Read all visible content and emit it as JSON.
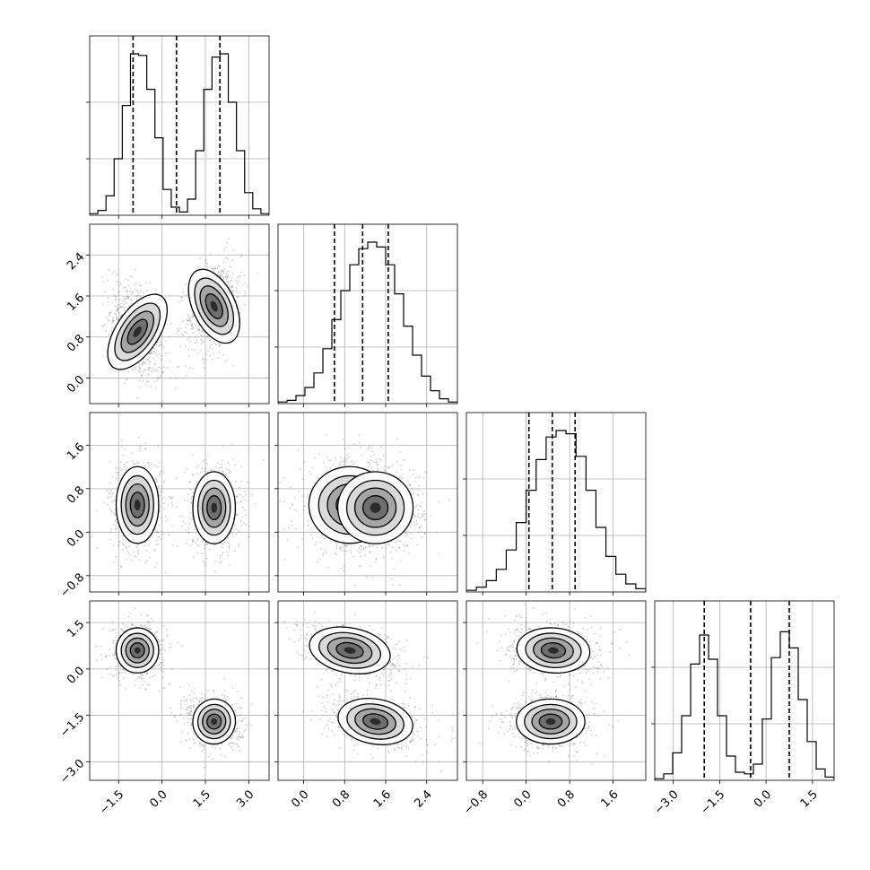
{
  "chart_data": {
    "type": "corner",
    "grid": true,
    "xticks": [
      [
        "-1.5",
        "0.0",
        "1.5",
        "3.0"
      ],
      [
        "0.0",
        "0.8",
        "1.6",
        "2.4"
      ],
      [
        "-0.8",
        "0.0",
        "0.8",
        "1.6"
      ],
      [
        "-3.0",
        "-1.5",
        "0.0",
        "1.5"
      ]
    ],
    "yticks": [
      [],
      [
        "0.0",
        "0.8",
        "1.6",
        "2.4"
      ],
      [
        "-0.8",
        "0.0",
        "0.8",
        "1.6"
      ],
      [
        "-3.0",
        "-1.5",
        "0.0",
        "1.5"
      ]
    ],
    "parameters": [
      {
        "range": [
          -2.5,
          3.7
        ],
        "ticks": [
          -1.5,
          0.0,
          1.5,
          3.0
        ],
        "quantiles": [
          -1.0,
          0.5,
          2.0
        ],
        "hist": [
          1,
          3,
          12,
          35,
          68,
          100,
          99,
          78,
          48,
          16,
          5,
          2,
          10,
          40,
          78,
          98,
          100,
          70,
          40,
          14,
          4,
          1
        ]
      },
      {
        "range": [
          -0.5,
          3.0
        ],
        "ticks": [
          0.0,
          0.8,
          1.6,
          2.4
        ],
        "quantiles": [
          0.6,
          1.15,
          1.65
        ],
        "hist": [
          1,
          2,
          5,
          10,
          19,
          34,
          52,
          70,
          86,
          96,
          100,
          97,
          86,
          68,
          48,
          30,
          17,
          8,
          3,
          1
        ]
      },
      {
        "range": [
          -1.1,
          2.2
        ],
        "ticks": [
          -0.8,
          0.0,
          0.8,
          1.6
        ],
        "quantiles": [
          0.05,
          0.48,
          0.9
        ],
        "hist": [
          1,
          3,
          7,
          14,
          26,
          43,
          63,
          82,
          96,
          100,
          98,
          84,
          63,
          40,
          22,
          11,
          5,
          2
        ]
      },
      {
        "range": [
          -3.6,
          2.2
        ],
        "ticks": [
          -3.0,
          -1.5,
          0.0,
          1.5
        ],
        "quantiles": [
          -2.0,
          -0.5,
          0.75
        ],
        "hist": [
          1,
          4,
          17,
          40,
          72,
          90,
          75,
          40,
          15,
          5,
          4,
          10,
          38,
          76,
          92,
          82,
          50,
          24,
          7,
          2
        ]
      }
    ],
    "modes": [
      {
        "mean": [
          -0.85,
          0.9,
          0.5,
          0.6
        ],
        "sd": [
          0.35,
          0.38,
          0.32,
          0.33
        ],
        "weight": 0.5
      },
      {
        "mean": [
          1.8,
          1.4,
          0.45,
          -1.7
        ],
        "sd": [
          0.35,
          0.35,
          0.3,
          0.33
        ],
        "weight": 0.5
      }
    ],
    "correlations": {
      "1-0": [
        -0.4,
        0.3
      ],
      "2-0": [
        0.0,
        0.0
      ],
      "2-1": [
        0.0,
        0.0
      ],
      "3-0": [
        0.0,
        -0.2
      ],
      "3-1": [
        -0.4,
        -0.35
      ],
      "3-2": [
        -0.15,
        0.0
      ]
    }
  }
}
